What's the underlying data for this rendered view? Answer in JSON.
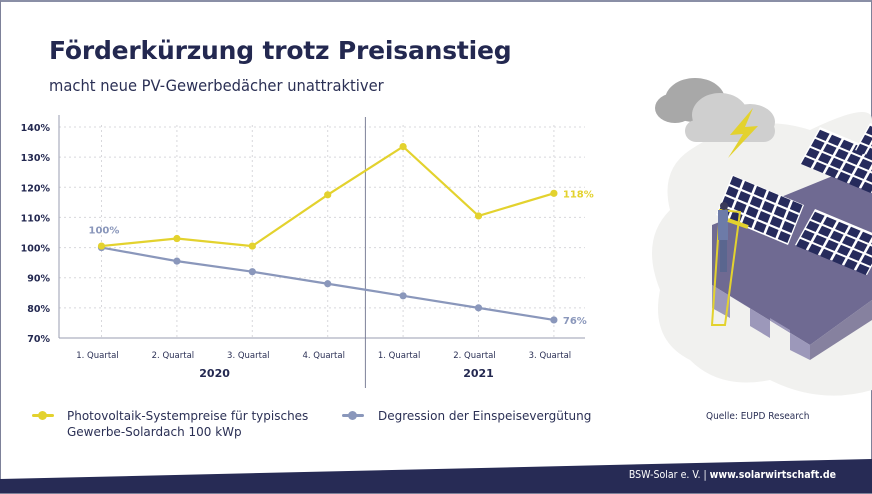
{
  "header": {
    "title": "Förderkürzung trotz Preisanstieg",
    "subtitle": "macht neue PV-Gewerbedächer unattraktiver"
  },
  "chart_data": {
    "type": "line",
    "categories": [
      "1. Quartal",
      "2. Quartal",
      "3. Quartal",
      "4. Quartal",
      "1. Quartal",
      "2. Quartal",
      "3. Quartal"
    ],
    "groups": [
      {
        "label": "2020",
        "count": 4
      },
      {
        "label": "2021",
        "count": 3
      }
    ],
    "ylim": [
      70,
      140
    ],
    "yticks": [
      70,
      80,
      90,
      100,
      110,
      120,
      130,
      140
    ],
    "ytick_labels": [
      "70%",
      "80%",
      "90%",
      "100%",
      "110%",
      "120%",
      "130%",
      "140%"
    ],
    "grid": true,
    "series": [
      {
        "name": "Photovoltaik-Systempreise für typisches Gewerbe-Solardach 100 kWp",
        "color": "#e3d22e",
        "values": [
          100.5,
          103,
          100.5,
          117.5,
          133.5,
          110.5,
          118
        ]
      },
      {
        "name": "Degression der Einspeisevergütung",
        "color": "#8a97bb",
        "values": [
          100,
          95.5,
          92,
          88,
          84,
          80,
          76
        ]
      }
    ],
    "annotations": [
      {
        "text": "100%",
        "series": 1,
        "index": 0,
        "color": "#8a97bb"
      },
      {
        "text": "118%",
        "series": 0,
        "index": 6,
        "color": "#e3d22e"
      },
      {
        "text": "76%",
        "series": 1,
        "index": 6,
        "color": "#8a97bb"
      }
    ],
    "legend_position": "bottom"
  },
  "legend": {
    "item1_line1": "Photovoltaik-Systempreise für typisches",
    "item1_line2": "Gewerbe-Solardach 100 kWp",
    "item2": "Degression der Einspeisevergütung"
  },
  "source": "Quelle: EUPD Research",
  "footer": {
    "org": "BSW-Solar e. V. |",
    "url": "www.solarwirtschaft.de"
  },
  "colors": {
    "navy": "#272b55",
    "yellow": "#e3d22e",
    "blue_grey": "#8a97bb"
  }
}
